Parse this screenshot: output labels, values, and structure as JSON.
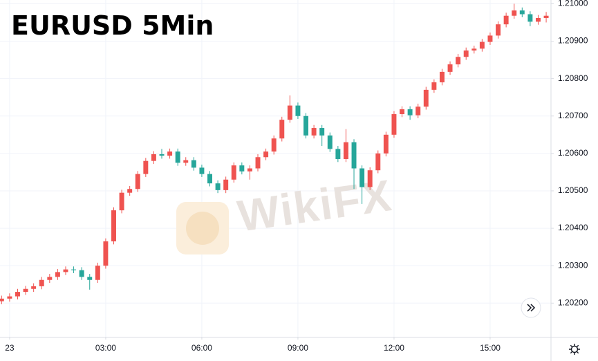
{
  "chart_data": {
    "type": "candlestick",
    "title": "EURUSD 5Min",
    "watermark": "WikiFX",
    "up_color": "#ef5350",
    "down_color": "#26a69a",
    "grid": true,
    "x": [
      -15,
      0,
      15,
      30,
      45,
      60,
      75,
      90,
      105,
      120,
      135,
      150,
      165,
      180,
      195,
      210,
      225,
      240,
      255,
      270,
      285,
      300,
      315,
      330,
      345,
      360,
      375,
      390,
      405,
      420,
      435,
      450,
      465,
      480,
      495,
      510,
      525,
      540,
      555,
      570,
      585,
      600,
      615,
      630,
      645,
      660,
      675,
      690,
      705,
      720,
      735,
      750,
      765,
      780,
      795,
      810,
      825,
      840,
      855,
      870,
      885,
      900,
      915,
      930,
      945,
      960,
      975,
      990,
      1005
    ],
    "open": [
      1.20205,
      1.20212,
      1.20218,
      1.2023,
      1.20238,
      1.20245,
      1.20262,
      1.2027,
      1.20283,
      1.2029,
      1.20288,
      1.2027,
      1.20262,
      1.203,
      1.20365,
      1.20448,
      1.20495,
      1.20505,
      1.20545,
      1.2058,
      1.20598,
      1.20594,
      1.20605,
      1.20575,
      1.20582,
      1.20562,
      1.20545,
      1.2052,
      1.20502,
      1.2053,
      1.20568,
      1.20552,
      1.2056,
      1.2059,
      1.20605,
      1.2064,
      1.2069,
      1.20728,
      1.207,
      1.20648,
      1.20668,
      1.20648,
      1.20612,
      1.20585,
      1.2063,
      1.2056,
      1.2051,
      1.20555,
      1.206,
      1.2065,
      1.20705,
      1.20718,
      1.20702,
      1.20725,
      1.2077,
      1.2079,
      1.20818,
      1.20838,
      1.20858,
      1.20875,
      1.2088,
      1.20898,
      1.20915,
      1.20945,
      1.20968,
      1.20982,
      1.20972,
      1.20952,
      1.20962
    ],
    "high": [
      1.2022,
      1.20226,
      1.20238,
      1.20246,
      1.20253,
      1.2027,
      1.20278,
      1.20291,
      1.20298,
      1.20298,
      1.20296,
      1.20278,
      1.20308,
      1.20373,
      1.20456,
      1.20503,
      1.20513,
      1.20553,
      1.20588,
      1.20606,
      1.20612,
      1.20613,
      1.20613,
      1.2059,
      1.2059,
      1.2057,
      1.20553,
      1.20528,
      1.20538,
      1.20576,
      1.20576,
      1.20568,
      1.20598,
      1.20613,
      1.20648,
      1.20698,
      1.20755,
      1.20736,
      1.20708,
      1.20676,
      1.20676,
      1.20656,
      1.2062,
      1.20665,
      1.20638,
      1.20568,
      1.20563,
      1.20608,
      1.20658,
      1.20713,
      1.20726,
      1.20726,
      1.20733,
      1.20778,
      1.20798,
      1.20826,
      1.20846,
      1.20866,
      1.20883,
      1.20888,
      1.20906,
      1.20923,
      1.20953,
      1.20976,
      1.21,
      1.2099,
      1.2098,
      1.2097,
      1.20978
    ],
    "low": [
      1.20197,
      1.20204,
      1.2021,
      1.20222,
      1.2023,
      1.20237,
      1.20254,
      1.20262,
      1.20275,
      1.2028,
      1.20262,
      1.20236,
      1.20254,
      1.20292,
      1.20357,
      1.2044,
      1.20487,
      1.20497,
      1.20537,
      1.20572,
      1.20586,
      1.20586,
      1.20567,
      1.20567,
      1.20554,
      1.20537,
      1.20512,
      1.20494,
      1.20494,
      1.20522,
      1.20544,
      1.2053,
      1.20552,
      1.20582,
      1.20597,
      1.20632,
      1.20682,
      1.20692,
      1.2064,
      1.2064,
      1.2062,
      1.20604,
      1.20577,
      1.20577,
      1.20505,
      1.20465,
      1.20502,
      1.20547,
      1.20592,
      1.20642,
      1.20697,
      1.2069,
      1.20694,
      1.20717,
      1.20762,
      1.20782,
      1.2081,
      1.2083,
      1.2085,
      1.20867,
      1.20872,
      1.2089,
      1.20907,
      1.20937,
      1.2096,
      1.20964,
      1.2094,
      1.20944,
      1.2095
    ],
    "close": [
      1.20212,
      1.20218,
      1.2023,
      1.20238,
      1.20245,
      1.20262,
      1.2027,
      1.20283,
      1.2029,
      1.20288,
      1.2027,
      1.20262,
      1.203,
      1.20365,
      1.20448,
      1.20495,
      1.20505,
      1.20545,
      1.2058,
      1.20598,
      1.20594,
      1.20605,
      1.20575,
      1.20582,
      1.20562,
      1.20545,
      1.2052,
      1.20502,
      1.2053,
      1.20568,
      1.20552,
      1.2056,
      1.2059,
      1.20605,
      1.2064,
      1.2069,
      1.20728,
      1.207,
      1.20648,
      1.20668,
      1.20648,
      1.20612,
      1.20585,
      1.2063,
      1.2056,
      1.2051,
      1.20555,
      1.206,
      1.2065,
      1.20705,
      1.20718,
      1.20702,
      1.20725,
      1.2077,
      1.2079,
      1.20818,
      1.20838,
      1.20858,
      1.20875,
      1.2088,
      1.20898,
      1.20915,
      1.20945,
      1.20968,
      1.20982,
      1.20972,
      1.20952,
      1.20962,
      1.20968
    ],
    "xlim": [
      -18,
      1014
    ],
    "xticks": [
      {
        "value": 0,
        "label": "23"
      },
      {
        "value": 180,
        "label": "03:00"
      },
      {
        "value": 360,
        "label": "06:00"
      },
      {
        "value": 540,
        "label": "09:00"
      },
      {
        "value": 720,
        "label": "12:00"
      },
      {
        "value": 900,
        "label": "15:00"
      }
    ],
    "ylim": [
      1.2011,
      1.2101
    ],
    "yticks": [
      {
        "value": 1.202,
        "label": "1.20200"
      },
      {
        "value": 1.203,
        "label": "1.20300"
      },
      {
        "value": 1.204,
        "label": "1.20400"
      },
      {
        "value": 1.205,
        "label": "1.20500"
      },
      {
        "value": 1.206,
        "label": "1.20600"
      },
      {
        "value": 1.207,
        "label": "1.20700"
      },
      {
        "value": 1.208,
        "label": "1.20800"
      },
      {
        "value": 1.209,
        "label": "1.20900"
      },
      {
        "value": 1.21,
        "label": "1.21000"
      }
    ]
  }
}
